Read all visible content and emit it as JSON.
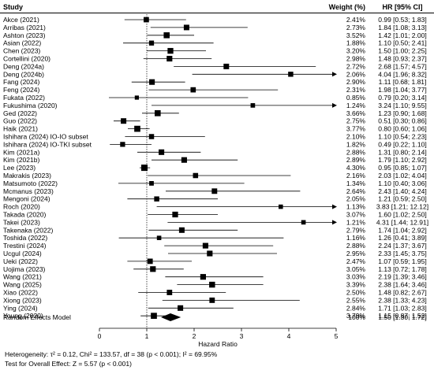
{
  "chart_data": {
    "type": "forest",
    "columns": {
      "study": "Study",
      "weight": "Weight (%)",
      "hr": "HR [95% CI]"
    },
    "studies": [
      {
        "study": "Akce (2021)",
        "weight": "2.41%",
        "hr_text": "0.99 [0.53; 1.83]",
        "hr": 0.99,
        "lo": 0.53,
        "hi": 1.83
      },
      {
        "study": "Arribas (2021)",
        "weight": "2.73%",
        "hr_text": "1.84 [1.08; 3.13]",
        "hr": 1.84,
        "lo": 1.08,
        "hi": 3.13
      },
      {
        "study": "Ashton (2023)",
        "weight": "3.52%",
        "hr_text": "1.42 [1.01; 2.00]",
        "hr": 1.42,
        "lo": 1.01,
        "hi": 2.0
      },
      {
        "study": "Asian (2022)",
        "weight": "1.88%",
        "hr_text": "1.10 [0.50; 2.41]",
        "hr": 1.1,
        "lo": 0.5,
        "hi": 2.41
      },
      {
        "study": "Chen (2023)",
        "weight": "3.20%",
        "hr_text": "1.50 [1.00; 2.25]",
        "hr": 1.5,
        "lo": 1.0,
        "hi": 2.25
      },
      {
        "study": "Cortellini (2020)",
        "weight": "2.98%",
        "hr_text": "1.48 [0.93; 2.37]",
        "hr": 1.48,
        "lo": 0.93,
        "hi": 2.37
      },
      {
        "study": "Deng (2024a)",
        "weight": "2.72%",
        "hr_text": "2.68 [1.57; 4.57]",
        "hr": 2.68,
        "lo": 1.57,
        "hi": 4.57
      },
      {
        "study": "Deng (2024b)",
        "weight": "2.06%",
        "hr_text": "4.04 [1.96; 8.32]",
        "hr": 4.04,
        "lo": 1.96,
        "hi": 8.32
      },
      {
        "study": "Fang (2024)",
        "weight": "2.90%",
        "hr_text": "1.11 [0.68; 1.81]",
        "hr": 1.11,
        "lo": 0.68,
        "hi": 1.81
      },
      {
        "study": "Feng (2024)",
        "weight": "2.31%",
        "hr_text": "1.98 [1.04; 3.77]",
        "hr": 1.98,
        "lo": 1.04,
        "hi": 3.77
      },
      {
        "study": "Fukata (2022)",
        "weight": "0.85%",
        "hr_text": "0.79 [0.20; 3.14]",
        "hr": 0.79,
        "lo": 0.2,
        "hi": 3.14
      },
      {
        "study": "Fukushima (2020)",
        "weight": "1.24%",
        "hr_text": "3.24 [1.10; 9.55]",
        "hr": 3.24,
        "lo": 1.1,
        "hi": 9.55
      },
      {
        "study": "Ged (2022)",
        "weight": "3.66%",
        "hr_text": "1.23 [0.90; 1.68]",
        "hr": 1.23,
        "lo": 0.9,
        "hi": 1.68
      },
      {
        "study": "Guo (2022)",
        "weight": "2.75%",
        "hr_text": "0.51 [0.30; 0.86]",
        "hr": 0.51,
        "lo": 0.3,
        "hi": 0.86
      },
      {
        "study": "Haik (2021)",
        "weight": "3.77%",
        "hr_text": "0.80 [0.60; 1.06]",
        "hr": 0.8,
        "lo": 0.6,
        "hi": 1.06
      },
      {
        "study": "Ishihara (2024) IO-IO subset",
        "weight": "2.10%",
        "hr_text": "1.10 [0.54; 2.23]",
        "hr": 1.1,
        "lo": 0.54,
        "hi": 2.23
      },
      {
        "study": "Ishihara (2024) IO-TKI subset",
        "weight": "1.82%",
        "hr_text": "0.49 [0.22; 1.10]",
        "hr": 0.49,
        "lo": 0.22,
        "hi": 1.1
      },
      {
        "study": "Kim (2021a)",
        "weight": "2.88%",
        "hr_text": "1.31 [0.80; 2.14]",
        "hr": 1.31,
        "lo": 0.8,
        "hi": 2.14
      },
      {
        "study": "Kim (2021b)",
        "weight": "2.89%",
        "hr_text": "1.79 [1.10; 2.92]",
        "hr": 1.79,
        "lo": 1.1,
        "hi": 2.92
      },
      {
        "study": "Lee (2023)",
        "weight": "4.30%",
        "hr_text": "0.95 [0.85; 1.07]",
        "hr": 0.95,
        "lo": 0.85,
        "hi": 1.07
      },
      {
        "study": "Makrakis (2023)",
        "weight": "2.16%",
        "hr_text": "2.03 [1.02; 4.04]",
        "hr": 2.03,
        "lo": 1.02,
        "hi": 4.04
      },
      {
        "study": "Matsumoto (2022)",
        "weight": "1.34%",
        "hr_text": "1.10 [0.40; 3.06]",
        "hr": 1.1,
        "lo": 0.4,
        "hi": 3.06
      },
      {
        "study": "Mcmanus (2023)",
        "weight": "2.64%",
        "hr_text": "2.43 [1.40; 4.24]",
        "hr": 2.43,
        "lo": 1.4,
        "hi": 4.24
      },
      {
        "study": "Mengoni (2024)",
        "weight": "2.05%",
        "hr_text": "1.21 [0.59; 2.50]",
        "hr": 1.21,
        "lo": 0.59,
        "hi": 2.5
      },
      {
        "study": "Roch (2020)",
        "weight": "1.13%",
        "hr_text": "3.83 [1.21; 12.12]",
        "hr": 3.83,
        "lo": 1.21,
        "hi": 12.12
      },
      {
        "study": "Takada (2020)",
        "weight": "3.07%",
        "hr_text": "1.60 [1.02; 2.50]",
        "hr": 1.6,
        "lo": 1.02,
        "hi": 2.5
      },
      {
        "study": "Takei (2023)",
        "weight": "1.21%",
        "hr_text": "4.31 [1.44; 12.91]",
        "hr": 4.31,
        "lo": 1.44,
        "hi": 12.91
      },
      {
        "study": "Takenaka (2022)",
        "weight": "2.79%",
        "hr_text": "1.74 [1.04; 2.92]",
        "hr": 1.74,
        "lo": 1.04,
        "hi": 2.92
      },
      {
        "study": "Toshida (2022)",
        "weight": "1.16%",
        "hr_text": "1.26 [0.41; 3.89]",
        "hr": 1.26,
        "lo": 0.41,
        "hi": 3.89
      },
      {
        "study": "Trestini (2024)",
        "weight": "2.88%",
        "hr_text": "2.24 [1.37; 3.67]",
        "hr": 2.24,
        "lo": 1.37,
        "hi": 3.67
      },
      {
        "study": "Ucgul (2024)",
        "weight": "2.95%",
        "hr_text": "2.33 [1.45; 3.75]",
        "hr": 2.33,
        "lo": 1.45,
        "hi": 3.75
      },
      {
        "study": "Ueki (2022)",
        "weight": "2.47%",
        "hr_text": "1.07 [0.59; 1.95]",
        "hr": 1.07,
        "lo": 0.59,
        "hi": 1.95
      },
      {
        "study": "Uojima (2023)",
        "weight": "3.05%",
        "hr_text": "1.13 [0.72; 1.78]",
        "hr": 1.13,
        "lo": 0.72,
        "hi": 1.78
      },
      {
        "study": "Wang (2021)",
        "weight": "3.03%",
        "hr_text": "2.19 [1.39; 3.46]",
        "hr": 2.19,
        "lo": 1.39,
        "hi": 3.46
      },
      {
        "study": "Wang (2025)",
        "weight": "3.39%",
        "hr_text": "2.38 [1.64; 3.46]",
        "hr": 2.38,
        "lo": 1.64,
        "hi": 3.46
      },
      {
        "study": "Xiao (2022)",
        "weight": "2.50%",
        "hr_text": "1.48 [0.82; 2.67]",
        "hr": 1.48,
        "lo": 0.82,
        "hi": 2.67
      },
      {
        "study": "Xiong (2023)",
        "weight": "2.55%",
        "hr_text": "2.38 [1.33; 4.23]",
        "hr": 2.38,
        "lo": 1.33,
        "hi": 4.23
      },
      {
        "study": "Ying (2024)",
        "weight": "2.84%",
        "hr_text": "1.71 [1.03; 2.83]",
        "hr": 1.71,
        "lo": 1.03,
        "hi": 2.83
      },
      {
        "study": "Young (2020)",
        "weight": "3.79%",
        "hr_text": "1.15 [0.87; 1.52]",
        "hr": 1.15,
        "lo": 0.87,
        "hi": 1.52
      }
    ],
    "pooled": {
      "label": "Random Effects Model",
      "weight": "100%",
      "hr_text": "1.50 [1.30; 1.72]",
      "hr": 1.5,
      "lo": 1.3,
      "hi": 1.72
    },
    "xaxis": {
      "label": "Hazard Ratio",
      "min": 0,
      "max": 5,
      "ticks": [
        0,
        1,
        2,
        3,
        4,
        5
      ],
      "reference_line": 1
    },
    "heterogeneity": "Heterogeneity: τ² = 0.12, Chi² = 133.57, df = 38 (p < 0.001); I² = 69.95%",
    "overall_test": "Test for Overall Effect: Z = 5.57 (p < 0.001)",
    "colors": {
      "marker": "#000000",
      "line": "#000000",
      "header_rule": "#000000"
    }
  }
}
